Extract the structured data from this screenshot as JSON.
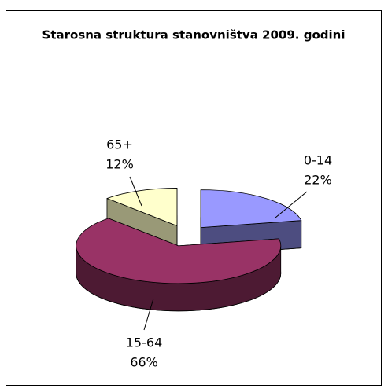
{
  "chart_data": {
    "type": "pie",
    "title": "Starosna struktura stanovništva 2009. godini",
    "categories": [
      "0-14",
      "15-64",
      "65+"
    ],
    "values": [
      22,
      66,
      12
    ],
    "value_labels": [
      "22%",
      "66%",
      "12%"
    ],
    "colors": [
      "#9999ff",
      "#993366",
      "#ffffcc"
    ],
    "side_colors": [
      "#4d4d80",
      "#4d1a33",
      "#999977"
    ]
  }
}
